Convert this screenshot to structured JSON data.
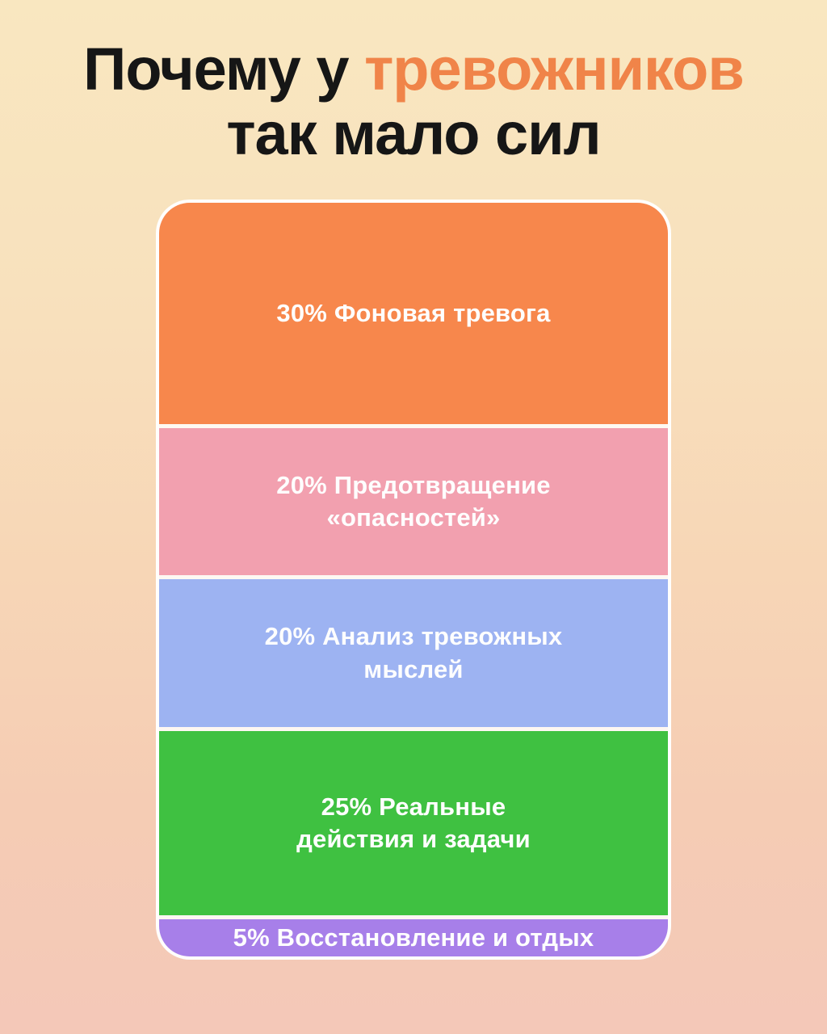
{
  "title": {
    "part1": "Почему у ",
    "accent": "тревожников",
    "line2": "так мало сил",
    "accent_color": "#F08449",
    "text_color": "#161616"
  },
  "page": {
    "background_top": "#F9E7C0",
    "background_bottom": "#F4C8B8",
    "divider_color": "#FFFFFF"
  },
  "chart_data": {
    "type": "bar",
    "subtype": "stacked-percentage-column",
    "orientation": "vertical",
    "title": "Почему у тревожников так мало сил",
    "unit": "%",
    "categories": [
      "Фоновая тревога",
      "Предотвращение «опасностей»",
      "Анализ тревожных мыслей",
      "Реальные действия и задачи",
      "Восстановление и отдых"
    ],
    "values": [
      30,
      20,
      20,
      25,
      5
    ],
    "colors": [
      "#F7874C",
      "#F2A0AF",
      "#9DB3F2",
      "#3FC141",
      "#A77FE9"
    ],
    "legend": "none",
    "grid": "off",
    "segments": [
      {
        "value": 30,
        "color": "#F7874C",
        "line1": "30% Фоновая тревога",
        "line2": ""
      },
      {
        "value": 20,
        "color": "#F2A0AF",
        "line1": "20% Предотвращение",
        "line2": "«опасностей»"
      },
      {
        "value": 20,
        "color": "#9DB3F2",
        "line1": "20% Анализ тревожных",
        "line2": "мыслей"
      },
      {
        "value": 25,
        "color": "#3FC141",
        "line1": "25% Реальные",
        "line2": "действия и задачи"
      },
      {
        "value": 5,
        "color": "#A77FE9",
        "line1": "5% Восстановление и отдых",
        "line2": ""
      }
    ]
  }
}
